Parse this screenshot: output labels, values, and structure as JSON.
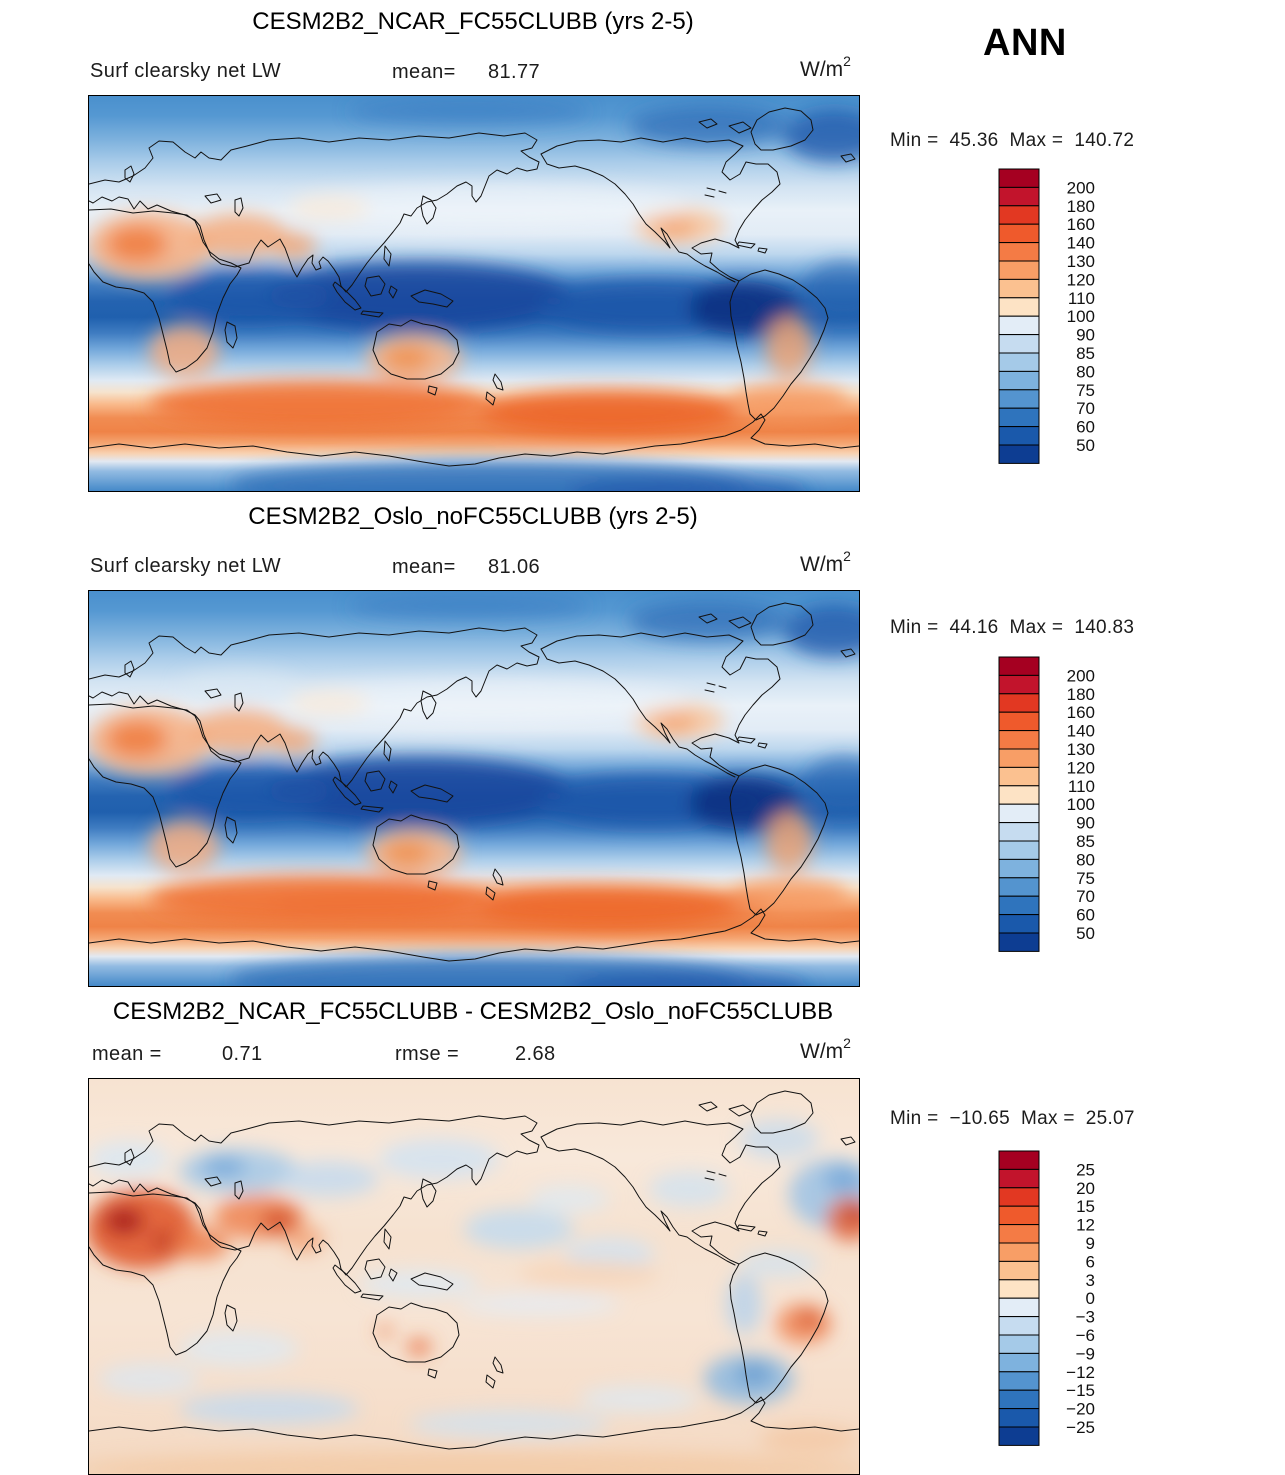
{
  "header": {
    "season": "ANN"
  },
  "panels": [
    {
      "title": "CESM2B2_NCAR_FC55CLUBB (yrs 2-5)",
      "variable": "Surf clearsky net LW",
      "stats": {
        "mean_label": "mean=",
        "mean": "81.77"
      },
      "units_base": "W/m",
      "units_exp": "2",
      "range": {
        "min_label": "Min =",
        "min": "45.36",
        "max_label": "Max =",
        "max": "140.72"
      }
    },
    {
      "title": "CESM2B2_Oslo_noFC55CLUBB (yrs 2-5)",
      "variable": "Surf clearsky net LW",
      "stats": {
        "mean_label": "mean=",
        "mean": "81.06"
      },
      "units_base": "W/m",
      "units_exp": "2",
      "range": {
        "min_label": "Min =",
        "min": "44.16",
        "max_label": "Max =",
        "max": "140.83"
      }
    },
    {
      "title": "CESM2B2_NCAR_FC55CLUBB - CESM2B2_Oslo_noFC55CLUBB",
      "stats": {
        "mean_label": "mean =",
        "mean": "0.71",
        "rmse_label": "rmse =",
        "rmse": "2.68"
      },
      "units_base": "W/m",
      "units_exp": "2",
      "range": {
        "min_label": "Min =",
        "min": "−10.65",
        "max_label": "Max =",
        "max": "25.07"
      }
    }
  ],
  "chart_data": [
    {
      "type": "heatmap",
      "title": "CESM2B2_NCAR_FC55CLUBB (yrs 2-5)",
      "variable": "Surf clearsky net LW",
      "season": "ANN",
      "units": "W/m^2",
      "mean": 81.77,
      "min": 45.36,
      "max": 140.72,
      "projection": "global lat-lon map, Pacific-centered",
      "legend_position": "right",
      "colorbar": {
        "levels": [
          "200",
          "180",
          "160",
          "140",
          "130",
          "120",
          "110",
          "100",
          "90",
          "85",
          "80",
          "75",
          "70",
          "60",
          "50"
        ],
        "colors": [
          "#a50021",
          "#c2142c",
          "#e23822",
          "#ef5a2c",
          "#f47b45",
          "#f89e66",
          "#fbc190",
          "#fde3c5",
          "#e3edf7",
          "#c6dcf0",
          "#a5cae8",
          "#7eb2de",
          "#5494cf",
          "#2f74bd",
          "#1a59ab",
          "#0d3d92"
        ]
      }
    },
    {
      "type": "heatmap",
      "title": "CESM2B2_Oslo_noFC55CLUBB (yrs 2-5)",
      "variable": "Surf clearsky net LW",
      "season": "ANN",
      "units": "W/m^2",
      "mean": 81.06,
      "min": 44.16,
      "max": 140.83,
      "projection": "global lat-lon map, Pacific-centered",
      "legend_position": "right",
      "colorbar": {
        "levels": [
          "200",
          "180",
          "160",
          "140",
          "130",
          "120",
          "110",
          "100",
          "90",
          "85",
          "80",
          "75",
          "70",
          "60",
          "50"
        ],
        "colors": [
          "#a50021",
          "#c2142c",
          "#e23822",
          "#ef5a2c",
          "#f47b45",
          "#f89e66",
          "#fbc190",
          "#fde3c5",
          "#e3edf7",
          "#c6dcf0",
          "#a5cae8",
          "#7eb2de",
          "#5494cf",
          "#2f74bd",
          "#1a59ab",
          "#0d3d92"
        ]
      }
    },
    {
      "type": "heatmap",
      "title": "CESM2B2_NCAR_FC55CLUBB - CESM2B2_Oslo_noFC55CLUBB",
      "season": "ANN",
      "units": "W/m^2",
      "mean": 0.71,
      "rmse": 2.68,
      "min": -10.65,
      "max": 25.07,
      "projection": "global lat-lon map, Pacific-centered",
      "legend_position": "right",
      "colorbar": {
        "levels": [
          "25",
          "20",
          "15",
          "12",
          "9",
          "6",
          "3",
          "0",
          "−3",
          "−6",
          "−9",
          "−12",
          "−15",
          "−20",
          "−25"
        ],
        "colors": [
          "#a50021",
          "#c2142c",
          "#e23822",
          "#ef5a2c",
          "#f47b45",
          "#f89e66",
          "#fbc190",
          "#fde3c5",
          "#e3edf7",
          "#c6dcf0",
          "#a5cae8",
          "#7eb2de",
          "#5494cf",
          "#2f74bd",
          "#1a59ab",
          "#0d3d92"
        ]
      }
    }
  ]
}
